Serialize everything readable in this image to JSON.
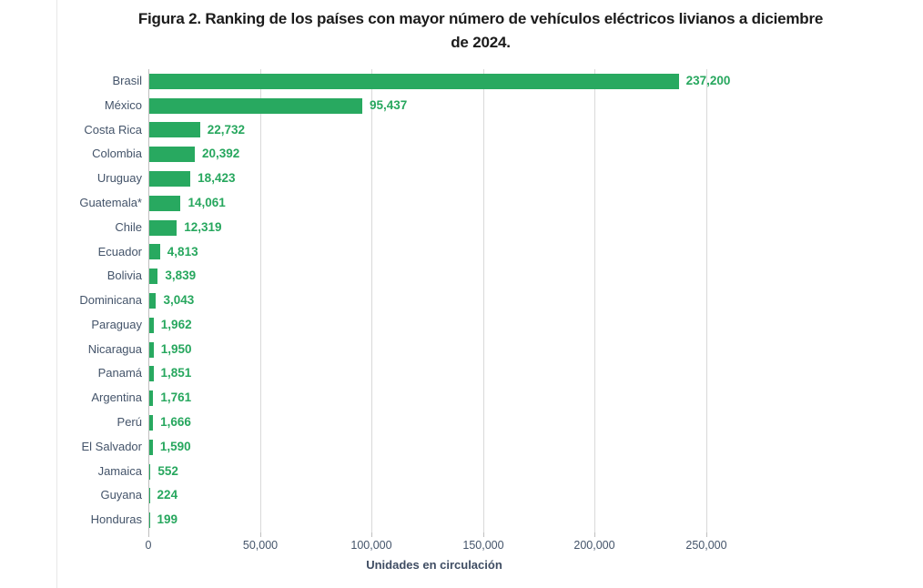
{
  "title": {
    "line1": "Figura 2. Ranking de los países con mayor número de vehículos eléctricos livianos a diciembre",
    "line2": "de 2024."
  },
  "chart_data": {
    "type": "bar",
    "orientation": "horizontal",
    "title": "Figura 2. Ranking de los países con mayor número de vehículos eléctricos livianos a diciembre de 2024.",
    "categories": [
      "Brasil",
      "México",
      "Costa Rica",
      "Colombia",
      "Uruguay",
      "Guatemala*",
      "Chile",
      "Ecuador",
      "Bolivia",
      "Dominicana",
      "Paraguay",
      "Nicaragua",
      "Panamá",
      "Argentina",
      "Perú",
      "El Salvador",
      "Jamaica",
      "Guyana",
      "Honduras"
    ],
    "values": [
      237200,
      95437,
      22732,
      20392,
      18423,
      14061,
      12319,
      4813,
      3839,
      3043,
      1962,
      1950,
      1851,
      1761,
      1666,
      1590,
      552,
      224,
      199
    ],
    "value_labels": [
      "237,200",
      "95,437",
      "22,732",
      "20,392",
      "18,423",
      "14,061",
      "12,319",
      "4,813",
      "3,839",
      "3,043",
      "1,962",
      "1,950",
      "1,851",
      "1,761",
      "1,666",
      "1,590",
      "552",
      "224",
      "199"
    ],
    "xlabel": "Unidades en circulación",
    "x_ticks": [
      "0",
      "50,000",
      "100,000",
      "150,000",
      "200,000",
      "250,000"
    ],
    "x_tick_values": [
      0,
      50000,
      100000,
      150000,
      200000,
      250000
    ],
    "xlim": [
      0,
      256000
    ],
    "grid": "vertical-gridlines-on",
    "legend": "none",
    "colors": {
      "bar": "#28a960",
      "value_label": "#27a75e",
      "axis_text": "#44546a",
      "gridline": "#d9d9d9",
      "axis_line": "#bfbfbf",
      "title_text": "#1b1b1b"
    }
  }
}
